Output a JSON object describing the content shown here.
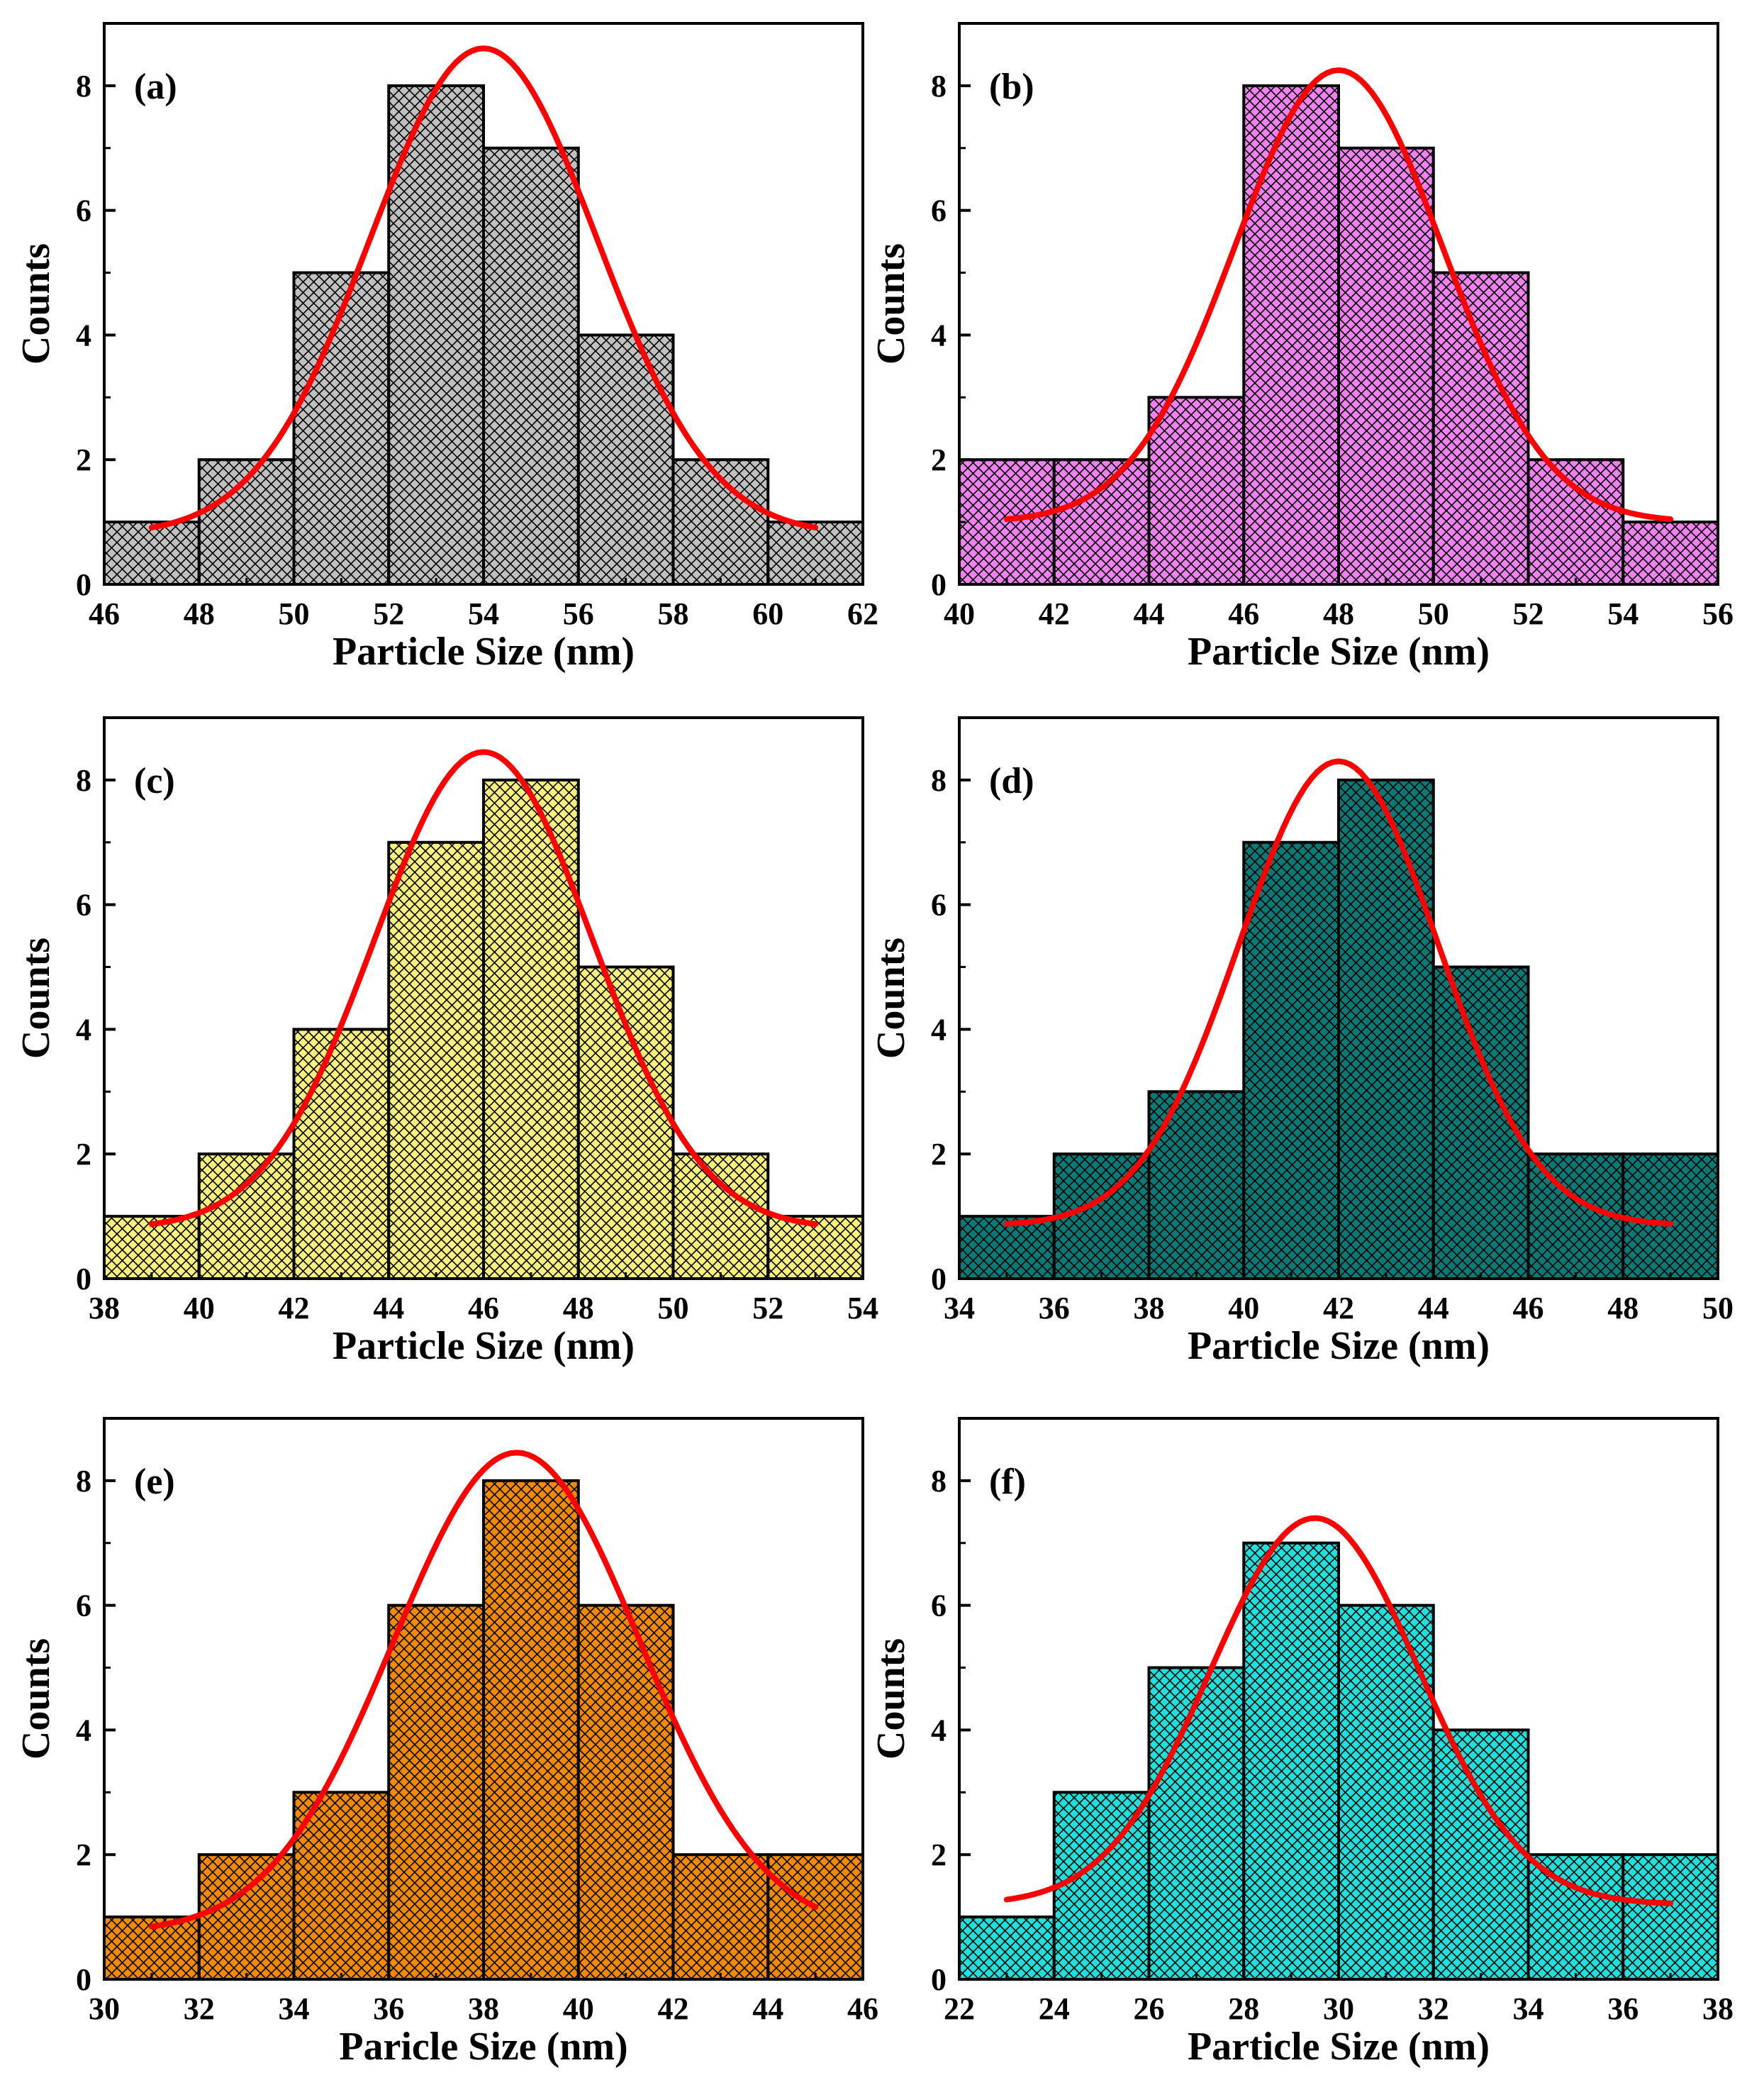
{
  "chart_data": [
    {
      "type": "bar",
      "panel": "(a)",
      "categories": [
        "46-48",
        "48-50",
        "50-52",
        "52-54",
        "54-56",
        "56-58",
        "58-60",
        "60-62"
      ],
      "bin_edges": [
        46,
        48,
        50,
        52,
        54,
        56,
        58,
        60,
        62
      ],
      "values": [
        1,
        2,
        5,
        8,
        7,
        4,
        2,
        1
      ],
      "fit": {
        "type": "gaussian",
        "center": 54,
        "peak": 8.6,
        "sigma": 2.4,
        "baseline": 0.8,
        "x_range": [
          47,
          61
        ]
      },
      "xlim": [
        46,
        62
      ],
      "ylim": [
        0,
        9
      ],
      "xticks": [
        46,
        48,
        50,
        52,
        54,
        56,
        58,
        60,
        62
      ],
      "yticks": [
        0,
        2,
        4,
        6,
        8
      ],
      "xlabel": "Particle Size (nm)",
      "ylabel": "Counts",
      "bar_color": "#c0c0c0",
      "fit_color": "#ff0000"
    },
    {
      "type": "bar",
      "panel": "(b)",
      "categories": [
        "40-42",
        "42-44",
        "44-46",
        "46-48",
        "48-50",
        "50-52",
        "52-54",
        "54-56"
      ],
      "bin_edges": [
        40,
        42,
        44,
        46,
        48,
        50,
        52,
        54,
        56
      ],
      "values": [
        2,
        2,
        3,
        8,
        7,
        5,
        2,
        1
      ],
      "fit": {
        "type": "gaussian",
        "center": 48,
        "peak": 8.25,
        "sigma": 2.2,
        "baseline": 1.0,
        "x_range": [
          41,
          55
        ]
      },
      "xlim": [
        40,
        56
      ],
      "ylim": [
        0,
        9
      ],
      "xticks": [
        40,
        42,
        44,
        46,
        48,
        50,
        52,
        54,
        56
      ],
      "yticks": [
        0,
        2,
        4,
        6,
        8
      ],
      "xlabel": "Particle Size (nm)",
      "ylabel": "Counts",
      "bar_color": "#ee82ee",
      "fit_color": "#ff0000"
    },
    {
      "type": "bar",
      "panel": "(c)",
      "categories": [
        "38-40",
        "40-42",
        "42-44",
        "44-46",
        "46-48",
        "48-50",
        "50-52",
        "52-54"
      ],
      "bin_edges": [
        38,
        40,
        42,
        44,
        46,
        48,
        50,
        52,
        54
      ],
      "values": [
        1,
        2,
        4,
        7,
        8,
        5,
        2,
        1
      ],
      "fit": {
        "type": "gaussian",
        "center": 46,
        "peak": 8.45,
        "sigma": 2.3,
        "baseline": 0.8,
        "x_range": [
          39,
          53
        ]
      },
      "xlim": [
        38,
        54
      ],
      "ylim": [
        0,
        9
      ],
      "xticks": [
        38,
        40,
        42,
        44,
        46,
        48,
        50,
        52,
        54
      ],
      "yticks": [
        0,
        2,
        4,
        6,
        8
      ],
      "xlabel": "Particle Size (nm)",
      "ylabel": "Counts",
      "bar_color": "#f7f07c",
      "fit_color": "#ff0000"
    },
    {
      "type": "bar",
      "panel": "(d)",
      "categories": [
        "34-36",
        "36-38",
        "38-40",
        "40-42",
        "42-44",
        "44-46",
        "46-48",
        "48-50"
      ],
      "bin_edges": [
        34,
        36,
        38,
        40,
        42,
        44,
        46,
        48,
        50
      ],
      "values": [
        1,
        2,
        3,
        7,
        8,
        5,
        2,
        2
      ],
      "fit": {
        "type": "gaussian",
        "center": 42,
        "peak": 8.3,
        "sigma": 2.1,
        "baseline": 0.85,
        "x_range": [
          35,
          49
        ]
      },
      "xlim": [
        34,
        50
      ],
      "ylim": [
        0,
        9
      ],
      "xticks": [
        34,
        36,
        38,
        40,
        42,
        44,
        46,
        48,
        50
      ],
      "yticks": [
        0,
        2,
        4,
        6,
        8
      ],
      "xlabel": "Particle Size (nm)",
      "ylabel": "Counts",
      "bar_color": "#0b7a77",
      "fit_color": "#ff0000"
    },
    {
      "type": "bar",
      "panel": "(e)",
      "categories": [
        "30-32",
        "32-34",
        "34-36",
        "36-38",
        "38-40",
        "40-42",
        "42-44",
        "44-46"
      ],
      "bin_edges": [
        30,
        32,
        34,
        36,
        38,
        40,
        42,
        44,
        46
      ],
      "values": [
        1,
        2,
        3,
        6,
        8,
        6,
        2,
        2
      ],
      "fit": {
        "type": "gaussian",
        "center": 38.7,
        "peak": 8.45,
        "sigma": 2.6,
        "baseline": 0.75,
        "x_range": [
          31,
          45
        ]
      },
      "xlim": [
        30,
        46
      ],
      "ylim": [
        0,
        9
      ],
      "xticks": [
        30,
        32,
        34,
        36,
        38,
        40,
        42,
        44,
        46
      ],
      "yticks": [
        0,
        2,
        4,
        6,
        8
      ],
      "xlabel": "Paricle Size (nm)",
      "ylabel": "Counts",
      "bar_color": "#f08a00",
      "fit_color": "#ff0000"
    },
    {
      "type": "bar",
      "panel": "(f)",
      "categories": [
        "22-24",
        "24-26",
        "26-28",
        "28-30",
        "30-32",
        "32-34",
        "34-36",
        "36-38"
      ],
      "bin_edges": [
        22,
        24,
        26,
        28,
        30,
        32,
        34,
        36,
        38
      ],
      "values": [
        1,
        3,
        5,
        7,
        6,
        4,
        2,
        2
      ],
      "fit": {
        "type": "gaussian",
        "center": 29.5,
        "peak": 7.4,
        "sigma": 2.2,
        "baseline": 1.2,
        "x_range": [
          23,
          37
        ]
      },
      "xlim": [
        22,
        38
      ],
      "ylim": [
        0,
        9
      ],
      "xticks": [
        22,
        24,
        26,
        28,
        30,
        32,
        34,
        36,
        38
      ],
      "yticks": [
        0,
        2,
        4,
        6,
        8
      ],
      "xlabel": "Particle Size (nm)",
      "ylabel": "Counts",
      "bar_color": "#1ee0dc",
      "fit_color": "#ff0000"
    }
  ]
}
